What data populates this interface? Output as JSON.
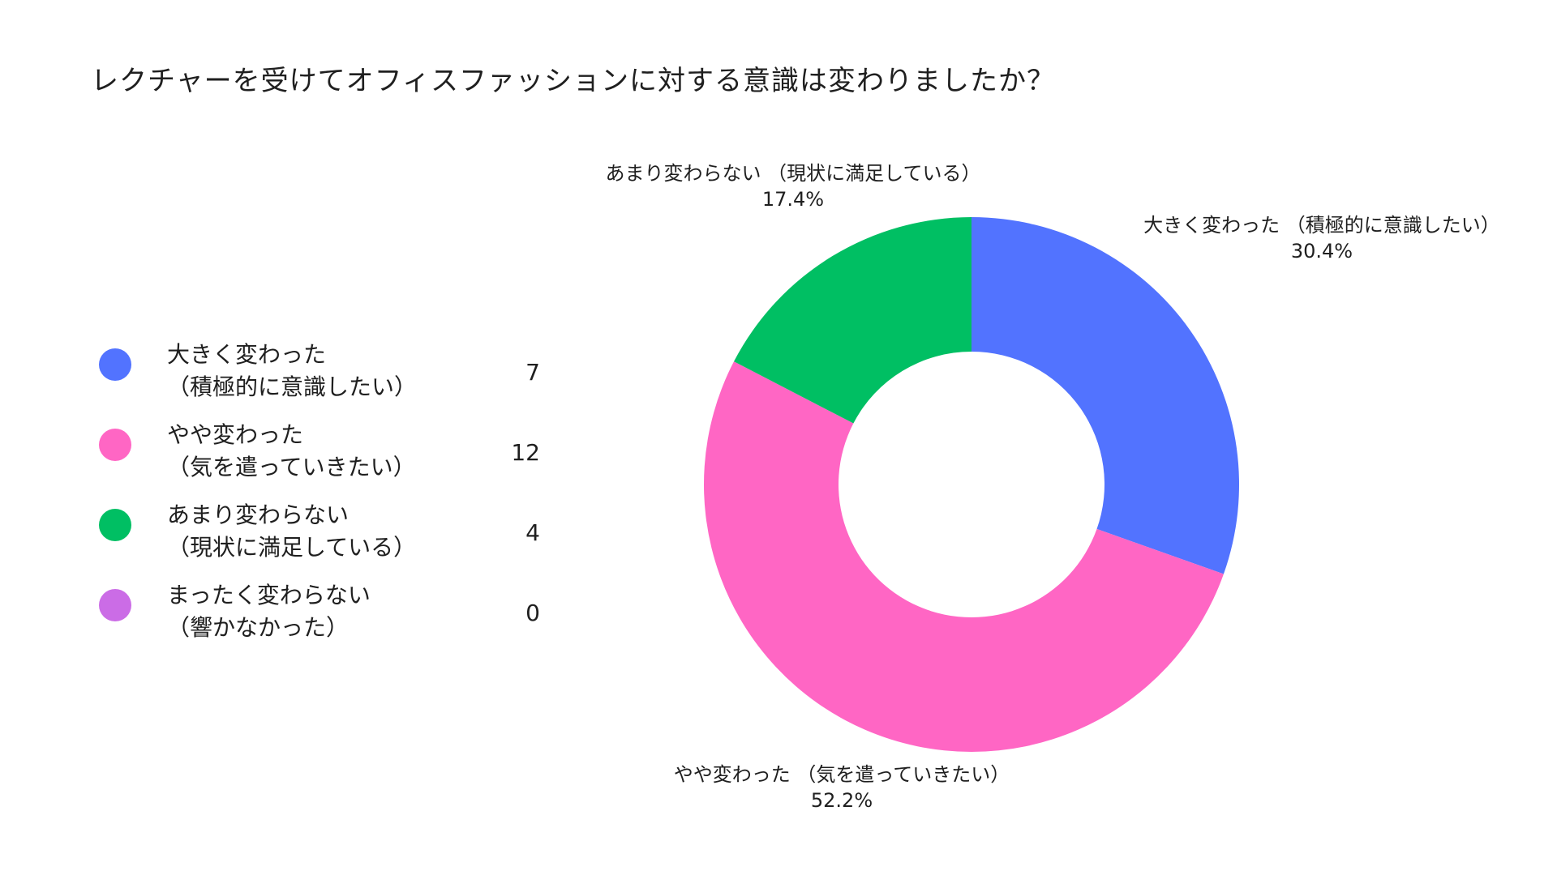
{
  "title": "レクチャーを受けてオフィスファッションに対する意識は変わりましたか？",
  "legend": [
    {
      "line1": "大きく変わった",
      "line2": "（積極的に意識したい）",
      "count": "7",
      "color": "#5273FF"
    },
    {
      "line1": "やや変わった",
      "line2": "（気を遣っていきたい）",
      "count": "12",
      "color": "#FF66C4"
    },
    {
      "line1": "あまり変わらない",
      "line2": "（現状に満足している）",
      "count": "4",
      "color": "#00BF63"
    },
    {
      "line1": "まったく変わらない",
      "line2": "（響かなかった）",
      "count": "0",
      "color": "#CB6CE6"
    }
  ],
  "slice_labels": [
    {
      "name": "大きく変わった （積極的に意識したい）",
      "percent": "30.4%"
    },
    {
      "name": "やや変わった （気を遣っていきたい）",
      "percent": "52.2%"
    },
    {
      "name": "あまり変わらない （現状に満足している）",
      "percent": "17.4%"
    }
  ],
  "chart_data": {
    "type": "pie",
    "title": "レクチャーを受けてオフィスファッションに対する意識は変わりましたか？",
    "donut": true,
    "categories": [
      "大きく変わった（積極的に意識したい）",
      "やや変わった（気を遣っていきたい）",
      "あまり変わらない（現状に満足している）",
      "まったく変わらない（響かなかった）"
    ],
    "values": [
      7,
      12,
      4,
      0
    ],
    "percentages": [
      30.4,
      52.2,
      17.4,
      0
    ],
    "colors": [
      "#5273FF",
      "#FF66C4",
      "#00BF63",
      "#CB6CE6"
    ],
    "legend_position": "left"
  }
}
